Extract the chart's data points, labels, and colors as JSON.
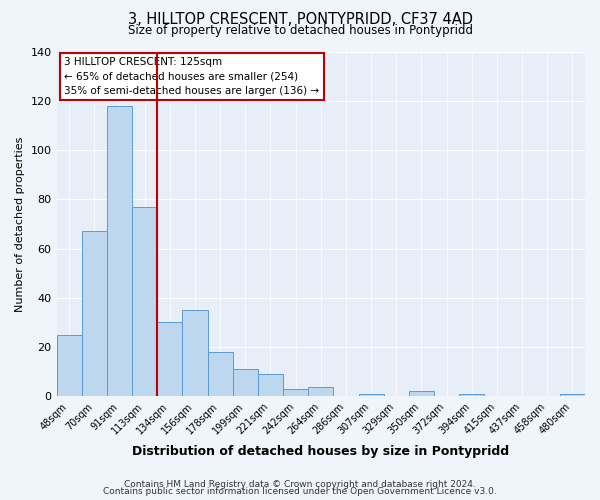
{
  "title": "3, HILLTOP CRESCENT, PONTYPRIDD, CF37 4AD",
  "subtitle": "Size of property relative to detached houses in Pontypridd",
  "xlabel": "Distribution of detached houses by size in Pontypridd",
  "ylabel": "Number of detached properties",
  "footer_lines": [
    "Contains HM Land Registry data © Crown copyright and database right 2024.",
    "Contains public sector information licensed under the Open Government Licence v3.0."
  ],
  "bar_labels": [
    "48sqm",
    "70sqm",
    "91sqm",
    "113sqm",
    "134sqm",
    "156sqm",
    "178sqm",
    "199sqm",
    "221sqm",
    "242sqm",
    "264sqm",
    "286sqm",
    "307sqm",
    "329sqm",
    "350sqm",
    "372sqm",
    "394sqm",
    "415sqm",
    "437sqm",
    "458sqm",
    "480sqm"
  ],
  "bar_values": [
    25,
    67,
    118,
    77,
    30,
    35,
    18,
    11,
    9,
    3,
    4,
    0,
    1,
    0,
    2,
    0,
    1,
    0,
    0,
    0,
    1
  ],
  "bar_color": "#bdd7ee",
  "bar_edge_color": "#5b9bd5",
  "vline_x": 3.5,
  "vline_color": "#c00000",
  "annotation_title": "3 HILLTOP CRESCENT: 125sqm",
  "annotation_line1": "← 65% of detached houses are smaller (254)",
  "annotation_line2": "35% of semi-detached houses are larger (136) →",
  "annotation_box_color": "#ffffff",
  "annotation_box_edge": "#c00000",
  "ylim": [
    0,
    140
  ],
  "yticks": [
    0,
    20,
    40,
    60,
    80,
    100,
    120,
    140
  ],
  "background_color": "#f0f5fb",
  "plot_background": "#e8eef8"
}
